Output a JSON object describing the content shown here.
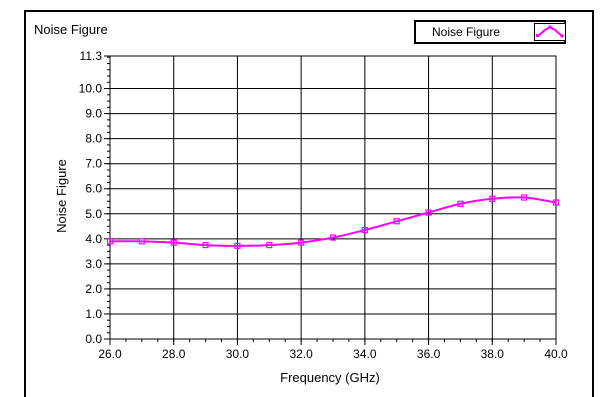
{
  "chart_data": {
    "type": "line",
    "title": "Noise Figure",
    "xlabel": "Frequency (GHz)",
    "ylabel": "Noise Figure",
    "xlim": [
      26.0,
      40.0
    ],
    "ylim": [
      0.0,
      11.3
    ],
    "xticks": [
      "26.0",
      "28.0",
      "30.0",
      "32.0",
      "34.0",
      "36.0",
      "38.0",
      "40.0"
    ],
    "yticks": [
      "0.0",
      "1.0",
      "2.0",
      "3.0",
      "4.0",
      "5.0",
      "6.0",
      "7.0",
      "8.0",
      "9.0",
      "10.0",
      "11.3"
    ],
    "grid": true,
    "legend_position": "top-right",
    "series": [
      {
        "name": "Noise Figure",
        "color": "#ff00ff",
        "x": [
          26,
          27,
          28,
          29,
          30,
          31,
          32,
          33,
          34,
          35,
          36,
          37,
          38,
          39,
          40
        ],
        "y": [
          3.9,
          3.9,
          3.85,
          3.75,
          3.72,
          3.75,
          3.85,
          4.05,
          4.35,
          4.7,
          5.05,
          5.4,
          5.6,
          5.65,
          5.45
        ]
      }
    ]
  }
}
